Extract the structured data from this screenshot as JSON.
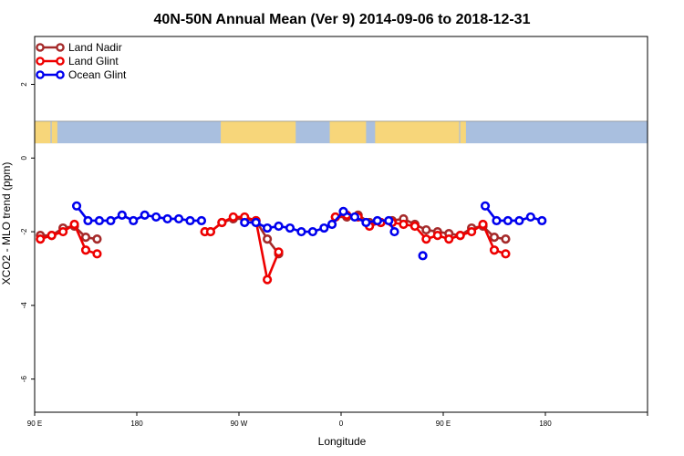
{
  "chart_data": {
    "type": "line",
    "title": "40N-50N Annual Mean (Ver 9)   2014-09-06 to 2018-12-31",
    "xlabel": "Longitude",
    "ylabel": "XCO2 - MLO trend (ppm)",
    "xlim": [
      0,
      540
    ],
    "ylim": [
      -6.9,
      3.3
    ],
    "x_ticks": [
      {
        "value": 0,
        "label": "90 E"
      },
      {
        "value": 90,
        "label": "180"
      },
      {
        "value": 180,
        "label": "90 W"
      },
      {
        "value": 270,
        "label": "0"
      },
      {
        "value": 360,
        "label": "90 E"
      },
      {
        "value": 450,
        "label": "180"
      }
    ],
    "y_ticks": [
      {
        "value": 2,
        "label": "2"
      },
      {
        "value": 0,
        "label": "0"
      },
      {
        "value": -2,
        "label": "-2"
      },
      {
        "value": -4,
        "label": "-4"
      },
      {
        "value": -6,
        "label": "-6"
      }
    ],
    "legend_position": "top-left",
    "grid": false,
    "map_strip": {
      "y_top": 1.0,
      "y_bottom": 0.4,
      "ocean_color": "#a9bfdf",
      "land_color": "#f7d67a"
    },
    "series": [
      {
        "name": "Land Nadir",
        "color": "#a52a2a",
        "segments": [
          [
            [
              5,
              -2.1
            ],
            [
              15,
              -2.1
            ],
            [
              25,
              -1.9
            ],
            [
              35,
              -1.85
            ],
            [
              45,
              -2.15
            ],
            [
              55,
              -2.2
            ]
          ],
          [
            [
              150,
              -2.0
            ],
            [
              155,
              -2.0
            ],
            [
              165,
              -1.75
            ],
            [
              175,
              -1.65
            ],
            [
              185,
              -1.65
            ],
            [
              195,
              -1.7
            ],
            [
              205,
              -2.2
            ],
            [
              215,
              -2.6
            ]
          ],
          [
            [
              265,
              -1.6
            ],
            [
              275,
              -1.6
            ],
            [
              285,
              -1.55
            ],
            [
              295,
              -1.75
            ],
            [
              305,
              -1.75
            ],
            [
              315,
              -1.7
            ],
            [
              325,
              -1.65
            ],
            [
              335,
              -1.8
            ],
            [
              345,
              -1.95
            ],
            [
              355,
              -2.0
            ],
            [
              365,
              -2.05
            ],
            [
              375,
              -2.1
            ],
            [
              385,
              -1.9
            ],
            [
              395,
              -1.85
            ],
            [
              405,
              -2.15
            ],
            [
              415,
              -2.2
            ]
          ]
        ]
      },
      {
        "name": "Land Glint",
        "color": "#ee0000",
        "segments": [
          [
            [
              5,
              -2.2
            ],
            [
              15,
              -2.1
            ],
            [
              25,
              -2.0
            ],
            [
              35,
              -1.8
            ],
            [
              45,
              -2.5
            ],
            [
              55,
              -2.6
            ]
          ],
          [
            [
              150,
              -2.0
            ],
            [
              155,
              -2.0
            ],
            [
              165,
              -1.75
            ],
            [
              175,
              -1.6
            ],
            [
              185,
              -1.6
            ],
            [
              195,
              -1.7
            ],
            [
              205,
              -3.3
            ],
            [
              215,
              -2.55
            ]
          ],
          [
            [
              265,
              -1.6
            ],
            [
              275,
              -1.55
            ],
            [
              285,
              -1.6
            ],
            [
              295,
              -1.85
            ],
            [
              305,
              -1.75
            ],
            [
              315,
              -1.75
            ],
            [
              325,
              -1.8
            ],
            [
              335,
              -1.85
            ],
            [
              345,
              -2.2
            ],
            [
              355,
              -2.1
            ],
            [
              365,
              -2.2
            ],
            [
              375,
              -2.1
            ],
            [
              385,
              -2.0
            ],
            [
              395,
              -1.8
            ],
            [
              405,
              -2.5
            ],
            [
              415,
              -2.6
            ]
          ]
        ]
      },
      {
        "name": "Ocean Glint",
        "color": "#0000ee",
        "segments": [
          [
            [
              37,
              -1.3
            ],
            [
              47,
              -1.7
            ],
            [
              57,
              -1.7
            ],
            [
              67,
              -1.7
            ],
            [
              77,
              -1.55
            ],
            [
              87,
              -1.7
            ],
            [
              97,
              -1.55
            ],
            [
              107,
              -1.6
            ],
            [
              117,
              -1.65
            ],
            [
              127,
              -1.65
            ],
            [
              137,
              -1.7
            ],
            [
              147,
              -1.7
            ]
          ],
          [
            [
              185,
              -1.75
            ],
            [
              195,
              -1.75
            ],
            [
              205,
              -1.9
            ],
            [
              215,
              -1.85
            ],
            [
              225,
              -1.9
            ],
            [
              235,
              -2.0
            ],
            [
              245,
              -2.0
            ],
            [
              255,
              -1.9
            ],
            [
              262,
              -1.8
            ],
            [
              272,
              -1.45
            ],
            [
              282,
              -1.6
            ],
            [
              292,
              -1.75
            ],
            [
              302,
              -1.7
            ],
            [
              312,
              -1.7
            ],
            [
              317,
              -2.0
            ]
          ],
          [
            [
              342,
              -2.65
            ]
          ],
          [
            [
              397,
              -1.3
            ],
            [
              407,
              -1.7
            ],
            [
              417,
              -1.7
            ],
            [
              427,
              -1.7
            ],
            [
              437,
              -1.6
            ],
            [
              447,
              -1.7
            ]
          ]
        ]
      }
    ]
  }
}
